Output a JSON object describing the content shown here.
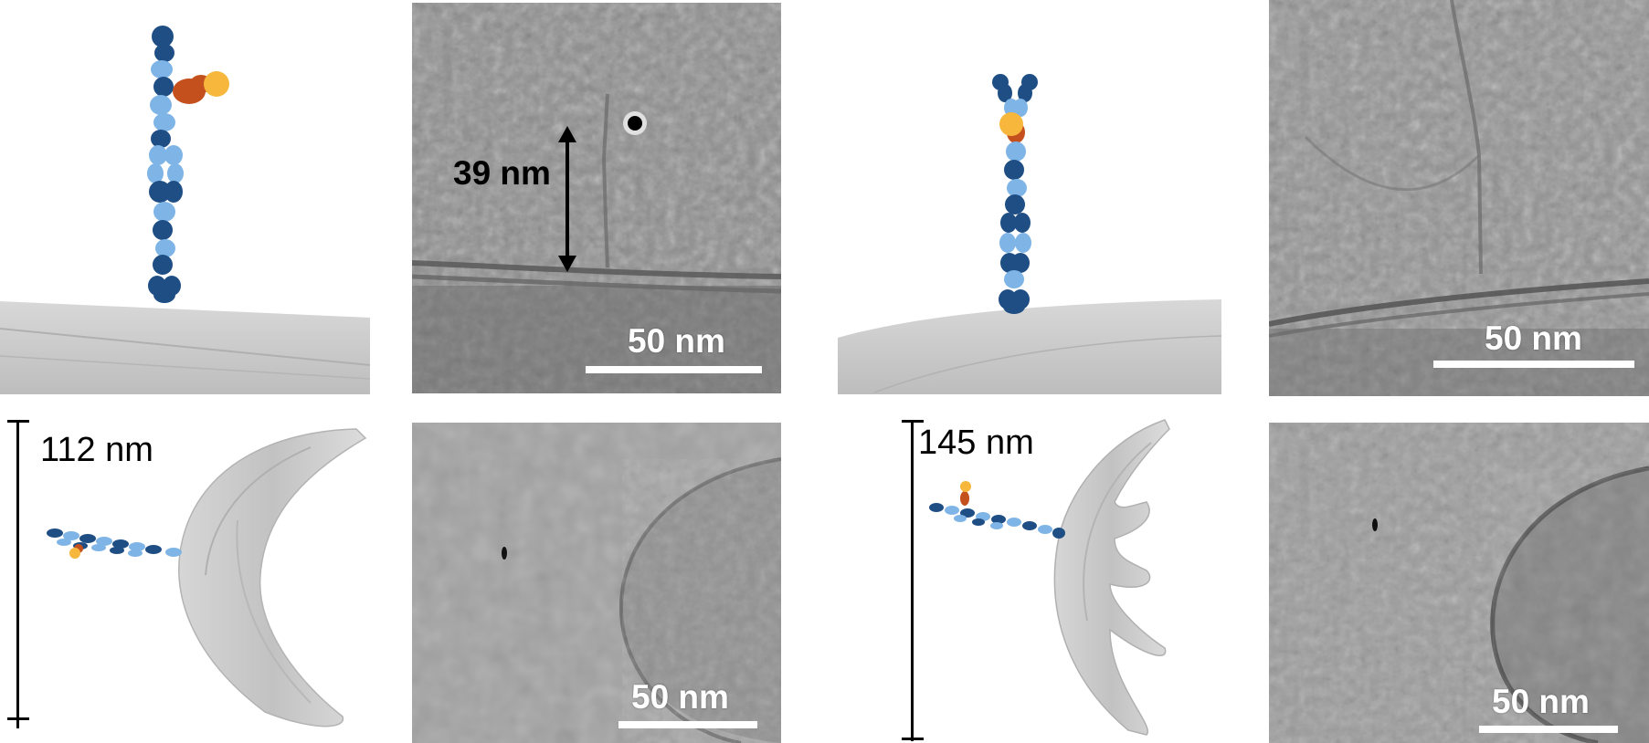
{
  "scale_bar_label": "50 nm",
  "measurements": {
    "height_39": "39 nm",
    "length_112": "112 nm",
    "length_145": "145 nm"
  },
  "colors": {
    "dark_blue": "#1f4e85",
    "light_blue": "#7fb5e6",
    "orange": "#c4501e",
    "gold": "#f6b73c",
    "membrane": "#c9c9c9",
    "em_gray": "#8f8f8f"
  }
}
